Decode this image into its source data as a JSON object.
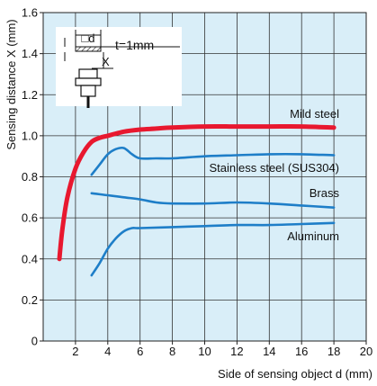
{
  "chart_data": {
    "type": "line",
    "title": "",
    "xlabel": "Side of sensing object d (mm)",
    "ylabel": "Sensing distance X (mm)",
    "xlim": [
      0,
      20
    ],
    "ylim": [
      0,
      1.6
    ],
    "xticks": [
      2,
      4,
      6,
      8,
      10,
      12,
      14,
      16,
      18,
      20
    ],
    "yticks": [
      0,
      0.2,
      0.4,
      0.6,
      0.8,
      1.0,
      1.2,
      1.4,
      1.6
    ],
    "ytick_labels": [
      "0",
      "0.2",
      "0.4",
      "0.6",
      "0.8",
      "1.0",
      "1.2",
      "1.4",
      "1.6"
    ],
    "grid": true,
    "background": "#d9eef8",
    "series": [
      {
        "name": "Mild steel",
        "color": "#e8182f",
        "x": [
          1.0,
          1.2,
          1.5,
          2.0,
          2.5,
          3.0,
          3.5,
          4.0,
          5.0,
          6.0,
          7.0,
          8.0,
          10.0,
          12.0,
          14.0,
          16.0,
          18.0
        ],
        "y": [
          0.4,
          0.55,
          0.7,
          0.84,
          0.92,
          0.97,
          0.99,
          1.0,
          1.02,
          1.03,
          1.035,
          1.04,
          1.045,
          1.045,
          1.045,
          1.045,
          1.04
        ]
      },
      {
        "name": "Stainless steel (SUS304)",
        "color": "#1e7ec8",
        "x": [
          3.0,
          3.5,
          4.0,
          4.5,
          5.0,
          5.5,
          6.0,
          7.0,
          8.0,
          10.0,
          12.0,
          14.0,
          16.0,
          18.0
        ],
        "y": [
          0.81,
          0.86,
          0.91,
          0.935,
          0.94,
          0.91,
          0.89,
          0.89,
          0.89,
          0.9,
          0.905,
          0.91,
          0.91,
          0.905
        ]
      },
      {
        "name": "Brass",
        "color": "#1e7ec8",
        "x": [
          3.0,
          4.0,
          5.0,
          6.0,
          7.0,
          8.0,
          10.0,
          12.0,
          14.0,
          16.0,
          18.0
        ],
        "y": [
          0.72,
          0.71,
          0.7,
          0.69,
          0.675,
          0.67,
          0.67,
          0.675,
          0.67,
          0.66,
          0.65
        ]
      },
      {
        "name": "Aluminum",
        "color": "#1e7ec8",
        "x": [
          3.0,
          3.5,
          4.0,
          4.5,
          5.0,
          5.5,
          6.0,
          8.0,
          10.0,
          12.0,
          14.0,
          16.0,
          18.0
        ],
        "y": [
          0.32,
          0.38,
          0.45,
          0.5,
          0.535,
          0.55,
          0.55,
          0.555,
          0.56,
          0.565,
          0.565,
          0.57,
          0.575
        ]
      }
    ],
    "annotations": {
      "inset_t_label": "t=1mm",
      "inset_d_label": "□d",
      "inset_x_label": "X"
    }
  }
}
